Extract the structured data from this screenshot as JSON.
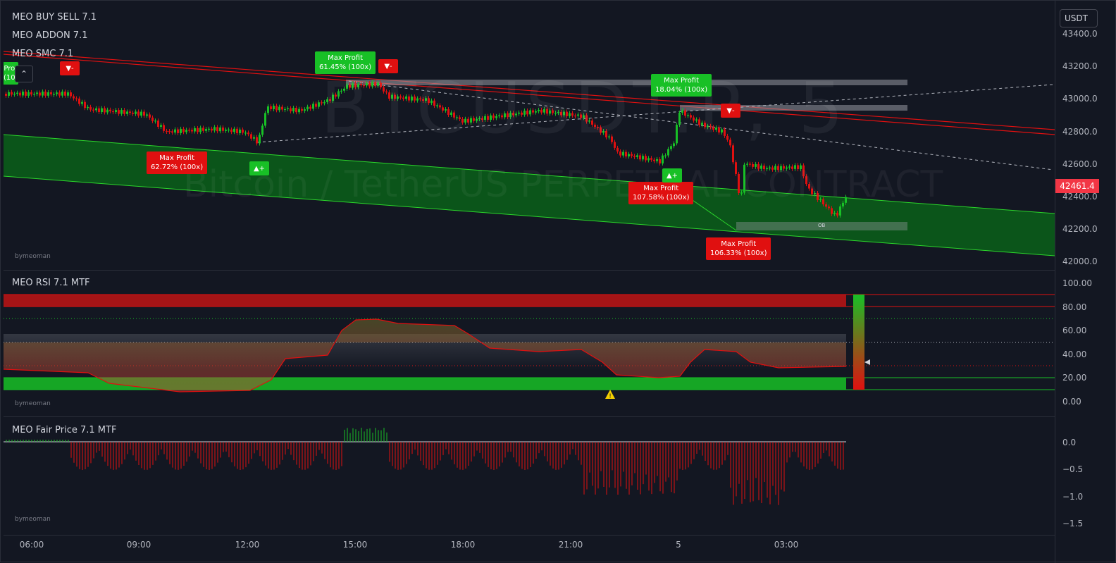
{
  "indicators": {
    "buy_sell": "MEO BUY SELL 7.1",
    "addon": "MEO ADDON 7.1",
    "smc": "MEO SMC 7.1",
    "rsi": "MEO RSI 7.1 MTF",
    "fair_price": "MEO Fair Price 7.1 MTF"
  },
  "watermark": {
    "symbol": "BTCUSDT.P, 5",
    "description": "Bitcoin / TetherUS PERPETUAL CONTRACT",
    "author": "bymeoman"
  },
  "currency_button": "USDT",
  "last_price": "42461.4",
  "price_axis": {
    "main": [
      "43400.0",
      "43200.0",
      "43000.0",
      "42800.0",
      "42600.0",
      "42400.0",
      "42200.0",
      "42000.0"
    ],
    "rsi": [
      "100.00",
      "80.00",
      "60.00",
      "40.00",
      "20.00",
      "0.00"
    ],
    "fair": [
      "0.0",
      "−0.5",
      "−1.0",
      "−1.5"
    ]
  },
  "time_axis": [
    "06:00",
    "09:00",
    "12:00",
    "15:00",
    "18:00",
    "21:00",
    "5",
    "03:00"
  ],
  "labels": {
    "mp1": {
      "title": "Max Profit",
      "value": "62.72% (100x)"
    },
    "mp2": {
      "title": "Max Profit",
      "value": "61.45% (100x)"
    },
    "mp3": {
      "title": "Max Profit",
      "value": "18.04% (100x)"
    },
    "mp4": {
      "title": "Max Profit",
      "value": "107.58% (100x)"
    },
    "mp5": {
      "title": "Max Profit",
      "value": "106.33% (100x)"
    },
    "cut": {
      "title": "Pro",
      "value": "(10"
    }
  },
  "ob_label": "OB",
  "sell_signal": "▼-",
  "buy_signal": "▲+",
  "collapse_icon": "chevron-up-icon",
  "colors": {
    "bull": "#18c026",
    "bear": "#e01010",
    "bg": "#131722"
  }
}
